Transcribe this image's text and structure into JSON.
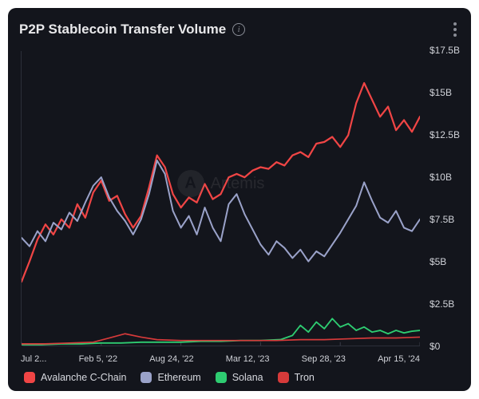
{
  "header": {
    "title": "P2P Stablecoin Transfer Volume"
  },
  "watermark": {
    "text": "Artemis"
  },
  "chart": {
    "type": "line",
    "background_color": "#13151c",
    "border_color": "#2c2f3a",
    "xlim": [
      0,
      100
    ],
    "ylim": [
      0,
      17.5
    ],
    "ytick_step": 2.5,
    "yticks": [
      "$17.5B",
      "$15B",
      "$12.5B",
      "$10B",
      "$7.5B",
      "$5B",
      "$2.5B",
      "$0"
    ],
    "xticks": [
      "Jul 2...",
      "Feb 5, '22",
      "Aug 24, '22",
      "Mar 12, '23",
      "Sep 28, '23",
      "Apr 15, '24"
    ],
    "label_fontsize": 12,
    "series": [
      {
        "name": "Avalanche C-Chain",
        "color": "#f04545",
        "stroke_width": 2.2,
        "legend_color": "#f04545",
        "points": [
          [
            0,
            3.8
          ],
          [
            2,
            5.0
          ],
          [
            4,
            6.3
          ],
          [
            6,
            7.2
          ],
          [
            8,
            6.6
          ],
          [
            10,
            7.5
          ],
          [
            12,
            7.0
          ],
          [
            14,
            8.4
          ],
          [
            16,
            7.6
          ],
          [
            18,
            9.1
          ],
          [
            20,
            9.8
          ],
          [
            22,
            8.6
          ],
          [
            24,
            8.9
          ],
          [
            26,
            7.8
          ],
          [
            28,
            7.0
          ],
          [
            30,
            7.7
          ],
          [
            32,
            9.4
          ],
          [
            34,
            11.3
          ],
          [
            36,
            10.6
          ],
          [
            38,
            9.0
          ],
          [
            40,
            8.2
          ],
          [
            42,
            8.8
          ],
          [
            44,
            8.5
          ],
          [
            46,
            9.6
          ],
          [
            48,
            8.7
          ],
          [
            50,
            9.0
          ],
          [
            52,
            10.0
          ],
          [
            54,
            10.2
          ],
          [
            56,
            10.0
          ],
          [
            58,
            10.4
          ],
          [
            60,
            10.6
          ],
          [
            62,
            10.5
          ],
          [
            64,
            10.9
          ],
          [
            66,
            10.7
          ],
          [
            68,
            11.3
          ],
          [
            70,
            11.5
          ],
          [
            72,
            11.2
          ],
          [
            74,
            12.0
          ],
          [
            76,
            12.1
          ],
          [
            78,
            12.4
          ],
          [
            80,
            11.8
          ],
          [
            82,
            12.5
          ],
          [
            84,
            14.4
          ],
          [
            86,
            15.6
          ],
          [
            88,
            14.6
          ],
          [
            90,
            13.6
          ],
          [
            92,
            14.2
          ],
          [
            94,
            12.8
          ],
          [
            96,
            13.4
          ],
          [
            98,
            12.7
          ],
          [
            100,
            13.6
          ]
        ]
      },
      {
        "name": "Ethereum",
        "color": "#9aa2c9",
        "stroke_width": 2.0,
        "legend_color": "#9aa2c9",
        "points": [
          [
            0,
            6.4
          ],
          [
            2,
            5.9
          ],
          [
            4,
            6.8
          ],
          [
            6,
            6.2
          ],
          [
            8,
            7.3
          ],
          [
            10,
            6.9
          ],
          [
            12,
            7.9
          ],
          [
            14,
            7.4
          ],
          [
            16,
            8.5
          ],
          [
            18,
            9.5
          ],
          [
            20,
            10.0
          ],
          [
            22,
            8.8
          ],
          [
            24,
            8.0
          ],
          [
            26,
            7.4
          ],
          [
            28,
            6.6
          ],
          [
            30,
            7.5
          ],
          [
            32,
            9.0
          ],
          [
            34,
            11.0
          ],
          [
            36,
            10.2
          ],
          [
            38,
            8.0
          ],
          [
            40,
            7.0
          ],
          [
            42,
            7.7
          ],
          [
            44,
            6.6
          ],
          [
            46,
            8.2
          ],
          [
            48,
            7.0
          ],
          [
            50,
            6.2
          ],
          [
            52,
            8.4
          ],
          [
            54,
            9.0
          ],
          [
            56,
            7.8
          ],
          [
            58,
            6.9
          ],
          [
            60,
            6.0
          ],
          [
            62,
            5.4
          ],
          [
            64,
            6.2
          ],
          [
            66,
            5.8
          ],
          [
            68,
            5.2
          ],
          [
            70,
            5.7
          ],
          [
            72,
            5.0
          ],
          [
            74,
            5.6
          ],
          [
            76,
            5.3
          ],
          [
            78,
            6.0
          ],
          [
            80,
            6.7
          ],
          [
            82,
            7.5
          ],
          [
            84,
            8.3
          ],
          [
            86,
            9.7
          ],
          [
            88,
            8.6
          ],
          [
            90,
            7.6
          ],
          [
            92,
            7.3
          ],
          [
            94,
            8.0
          ],
          [
            96,
            7.0
          ],
          [
            98,
            6.8
          ],
          [
            100,
            7.5
          ]
        ]
      },
      {
        "name": "Solana",
        "color": "#2ecc71",
        "stroke_width": 1.8,
        "legend_color": "#2ecc71",
        "points": [
          [
            0,
            0.05
          ],
          [
            5,
            0.05
          ],
          [
            10,
            0.1
          ],
          [
            15,
            0.1
          ],
          [
            20,
            0.15
          ],
          [
            25,
            0.15
          ],
          [
            30,
            0.2
          ],
          [
            35,
            0.2
          ],
          [
            40,
            0.2
          ],
          [
            45,
            0.25
          ],
          [
            50,
            0.25
          ],
          [
            55,
            0.3
          ],
          [
            60,
            0.3
          ],
          [
            65,
            0.35
          ],
          [
            68,
            0.6
          ],
          [
            70,
            1.2
          ],
          [
            72,
            0.8
          ],
          [
            74,
            1.4
          ],
          [
            76,
            1.0
          ],
          [
            78,
            1.6
          ],
          [
            80,
            1.1
          ],
          [
            82,
            1.3
          ],
          [
            84,
            0.9
          ],
          [
            86,
            1.1
          ],
          [
            88,
            0.8
          ],
          [
            90,
            0.9
          ],
          [
            92,
            0.7
          ],
          [
            94,
            0.9
          ],
          [
            96,
            0.75
          ],
          [
            98,
            0.85
          ],
          [
            100,
            0.9
          ]
        ]
      },
      {
        "name": "Tron",
        "color": "#d63a3a",
        "stroke_width": 1.6,
        "legend_color": "#d63a3a",
        "points": [
          [
            0,
            0.1
          ],
          [
            6,
            0.1
          ],
          [
            12,
            0.15
          ],
          [
            18,
            0.2
          ],
          [
            22,
            0.45
          ],
          [
            26,
            0.7
          ],
          [
            30,
            0.5
          ],
          [
            34,
            0.35
          ],
          [
            40,
            0.3
          ],
          [
            46,
            0.3
          ],
          [
            52,
            0.3
          ],
          [
            58,
            0.3
          ],
          [
            64,
            0.3
          ],
          [
            70,
            0.35
          ],
          [
            76,
            0.35
          ],
          [
            82,
            0.4
          ],
          [
            88,
            0.45
          ],
          [
            94,
            0.45
          ],
          [
            100,
            0.5
          ]
        ]
      }
    ],
    "legend": [
      {
        "label": "Avalanche C-Chain",
        "color": "#f04545"
      },
      {
        "label": "Ethereum",
        "color": "#9aa2c9"
      },
      {
        "label": "Solana",
        "color": "#2ecc71"
      },
      {
        "label": "Tron",
        "color": "#d63a3a"
      }
    ]
  }
}
